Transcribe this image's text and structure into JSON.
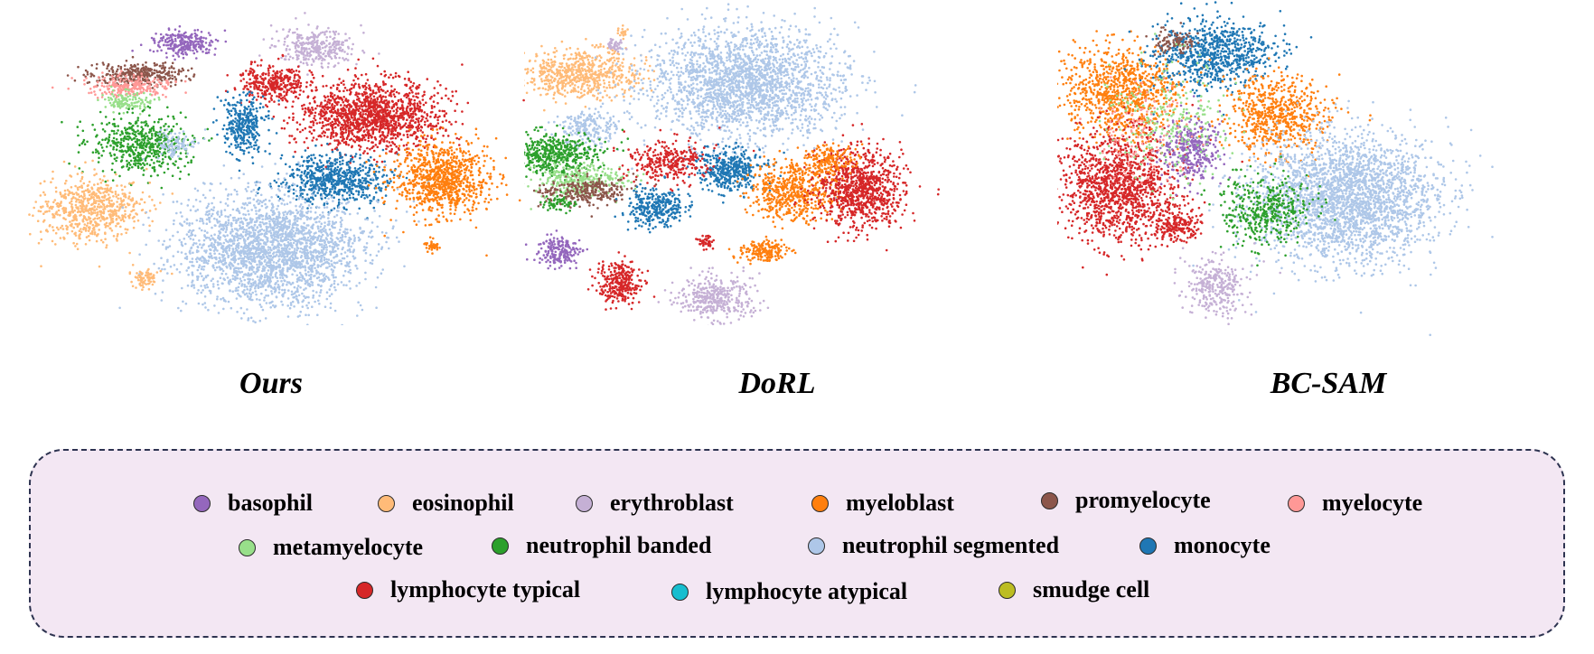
{
  "chart_data": {
    "type": "scatter",
    "panels": [
      {
        "title": "Ours"
      },
      {
        "title": "DoRL"
      },
      {
        "title": "BC-SAM"
      }
    ],
    "legend": [
      {
        "label": "basophil",
        "color": "#9467bd"
      },
      {
        "label": "eosinophil",
        "color": "#ffbb78"
      },
      {
        "label": "erythroblast",
        "color": "#c5b0d5"
      },
      {
        "label": "myeloblast",
        "color": "#ff7f0e"
      },
      {
        "label": "promyelocyte",
        "color": "#8c564b"
      },
      {
        "label": "myelocyte",
        "color": "#ff9896"
      },
      {
        "label": "metamyelocyte",
        "color": "#98df8a"
      },
      {
        "label": "neutrophil banded",
        "color": "#2ca02c"
      },
      {
        "label": "neutrophil segmented",
        "color": "#aec7e8"
      },
      {
        "label": "monocyte",
        "color": "#1f77b4"
      },
      {
        "label": "lymphocyte typical",
        "color": "#d62728"
      },
      {
        "label": "lymphocyte atypical",
        "color": "#17becf"
      },
      {
        "label": "smudge cell",
        "color": "#bcbd22"
      }
    ],
    "legend_placement": "bottom"
  }
}
